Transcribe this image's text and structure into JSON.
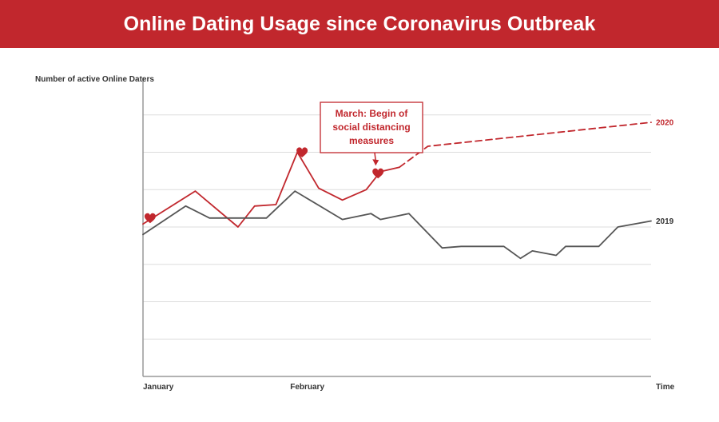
{
  "header": {
    "title": "Online Dating Usage since Coronavirus Outbreak"
  },
  "colors": {
    "accent": "#c1272d",
    "series_2019": "#555555",
    "grid": "#dddddd"
  },
  "chart_data": {
    "type": "line",
    "title": "Online Dating Usage since Coronavirus Outbreak",
    "ylabel": "Number of active Online Daters",
    "xlabel": "Time",
    "x_tick_labels": [
      {
        "label": "January",
        "x": 0.5
      },
      {
        "label": "February",
        "x": 31.5
      }
    ],
    "xlim": [
      0,
      107
    ],
    "ylim": [
      0,
      100
    ],
    "y_ticks": [
      12.5,
      25,
      37.5,
      50,
      62.5,
      75,
      87.5,
      100
    ],
    "grid": true,
    "y_tick_labels_shown": false,
    "series": [
      {
        "name": "2020",
        "style": "solid",
        "points": [
          [
            0,
            51
          ],
          [
            11,
            62
          ],
          [
            20,
            50
          ],
          [
            23.5,
            57
          ],
          [
            28,
            57.5
          ],
          [
            32.5,
            75
          ],
          [
            37,
            63
          ],
          [
            42,
            59
          ],
          [
            47,
            62.5
          ],
          [
            50,
            68.5
          ],
          [
            54,
            70
          ]
        ]
      },
      {
        "name": "2020",
        "style": "dashed",
        "label_at_end": true,
        "points": [
          [
            54,
            70
          ],
          [
            60,
            77
          ],
          [
            107,
            85
          ]
        ]
      },
      {
        "name": "2019",
        "style": "solid",
        "label_at_end": true,
        "points": [
          [
            0,
            47.5
          ],
          [
            9,
            57
          ],
          [
            14,
            53
          ],
          [
            26,
            53
          ],
          [
            32,
            62
          ],
          [
            42,
            52.5
          ],
          [
            48,
            54.5
          ],
          [
            50,
            52.5
          ],
          [
            56,
            54.5
          ],
          [
            63,
            43
          ],
          [
            67,
            43.5
          ],
          [
            76,
            43.5
          ],
          [
            79.5,
            39.5
          ],
          [
            82,
            42
          ],
          [
            87,
            40.5
          ],
          [
            89,
            43.5
          ],
          [
            96,
            43.5
          ],
          [
            100,
            50
          ],
          [
            107,
            52
          ]
        ]
      }
    ],
    "markers": [
      {
        "type": "heart",
        "x": 1.5,
        "y": 53
      },
      {
        "type": "heart",
        "x": 33.5,
        "y": 75
      },
      {
        "type": "heart",
        "x": 49.5,
        "y": 68
      }
    ],
    "annotation": {
      "lines": [
        "March: Begin of",
        "social distancing",
        "measures"
      ],
      "points_to": {
        "x": 49,
        "y": 70
      }
    }
  }
}
